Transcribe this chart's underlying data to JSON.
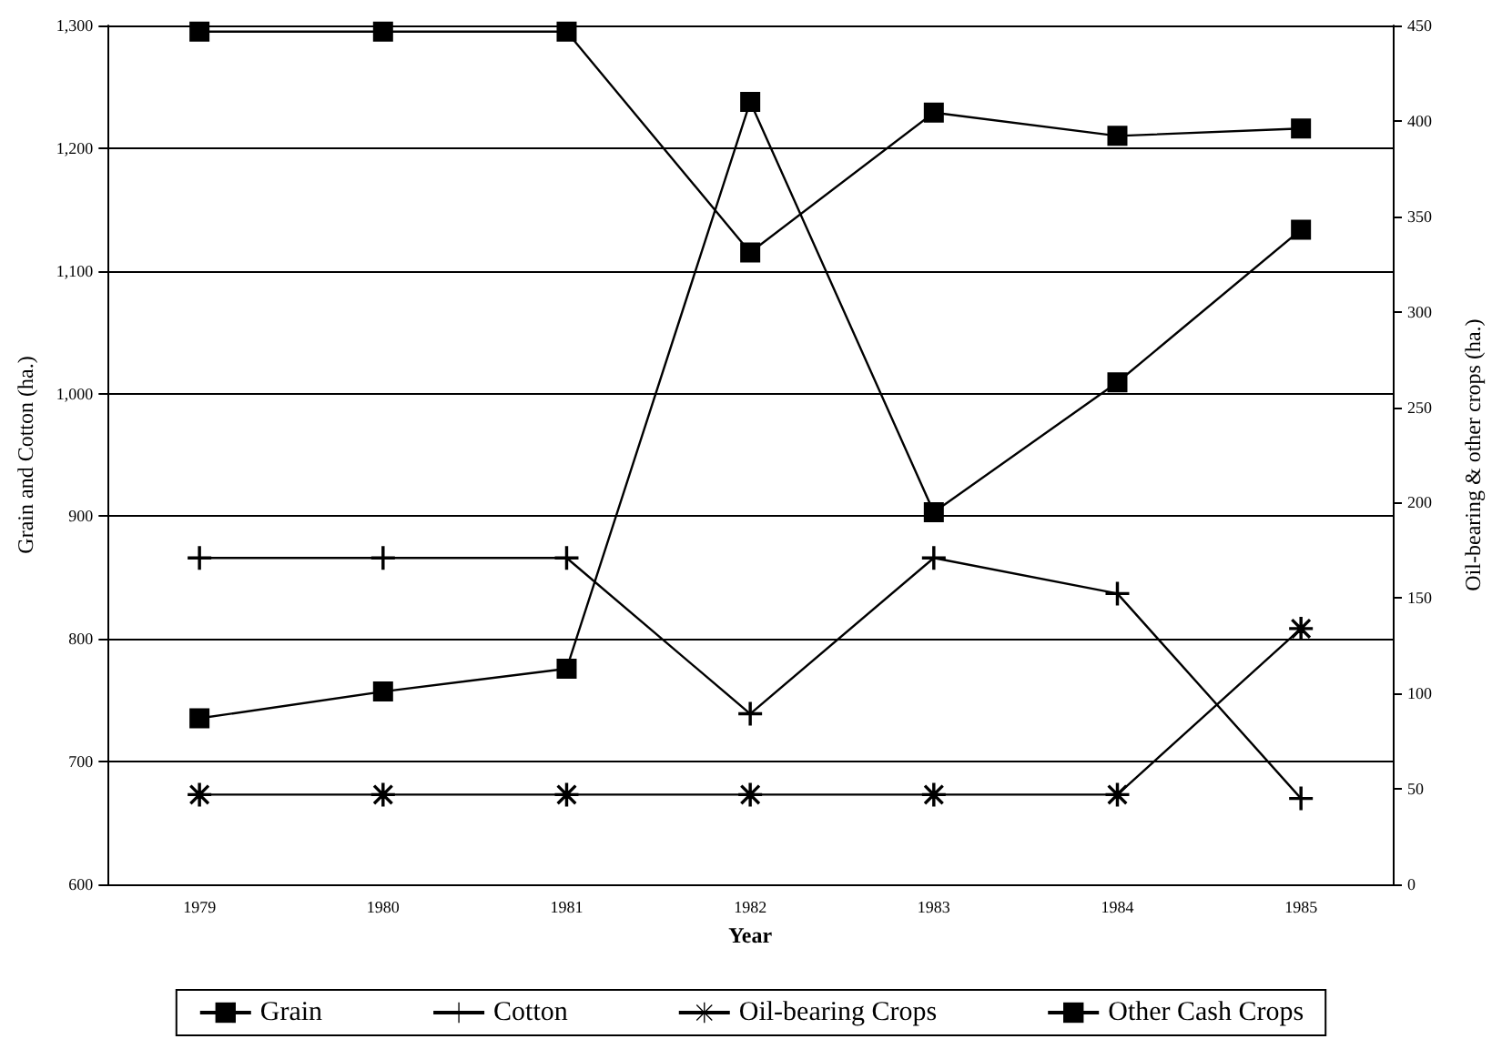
{
  "chart_data": {
    "type": "line",
    "xlabel": "Year",
    "ylabel": "Grain and Cotton (ha.)",
    "y2label": "Oil-bearing & other crops (ha.)",
    "categories": [
      "1979",
      "1980",
      "1981",
      "1982",
      "1983",
      "1984",
      "1985"
    ],
    "series": [
      {
        "name": "Grain",
        "color": "#000000",
        "marker": "square",
        "values": [
          1295,
          1295,
          1295,
          1115,
          1229,
          1210,
          1216
        ]
      },
      {
        "name": "Cotton",
        "color": "#000000",
        "marker": "cross",
        "values": [
          866,
          866,
          866,
          739,
          866,
          837,
          670
        ]
      },
      {
        "name": "Oil-bearing Crops",
        "color": "#000000",
        "marker": "star",
        "axis": "y2",
        "values": [
          47,
          47,
          47,
          47,
          47,
          47,
          134
        ]
      },
      {
        "name": "Other Cash Crops",
        "color": "#000000",
        "marker": "square",
        "axis": "y2",
        "values": [
          87,
          101,
          113,
          410,
          195,
          263,
          343
        ]
      }
    ],
    "ylim": [
      600,
      1300
    ],
    "yticks": [
      600,
      700,
      800,
      900,
      {
        "value": 1000,
        "label": "1,000"
      },
      {
        "value": 1100,
        "label": "1,100"
      },
      {
        "value": 1200,
        "label": "1,200"
      },
      {
        "value": 1300,
        "label": "1,300"
      }
    ],
    "y2lim": [
      0,
      450
    ],
    "y2ticks": [
      0,
      50,
      100,
      150,
      200,
      250,
      300,
      350,
      400,
      450
    ],
    "grid": "y",
    "legend": "bottom",
    "line_style": "solid"
  }
}
